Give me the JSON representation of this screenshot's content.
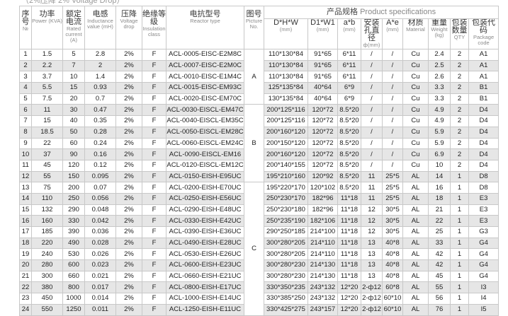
{
  "caption": "（2%压降  2% Voltage Drop）",
  "spec_group": {
    "zh": "产品规格",
    "en": "Product specifications"
  },
  "columns": [
    {
      "zh": "序号",
      "en": "№"
    },
    {
      "zh": "功率",
      "en": "Power (KVA)"
    },
    {
      "zh": "额定电流",
      "en": "Rated current (A)"
    },
    {
      "zh": "电感",
      "en": "Inductance value (mH)"
    },
    {
      "zh": "压降",
      "en": "Voltage drop"
    },
    {
      "zh": "绝缘等级",
      "en": "Insulation class"
    },
    {
      "zh": "电抗型号",
      "en": "Reactor type"
    },
    {
      "zh": "图号",
      "en": "Picture No."
    },
    {
      "zh": "D*H*W",
      "en": "(mm)"
    },
    {
      "zh": "D1*W1",
      "en": "(mm)"
    },
    {
      "zh": "a*b",
      "en": "(mm)"
    },
    {
      "zh": "安装孔直径",
      "en": "ф(mm)"
    },
    {
      "zh": "A*e",
      "en": "(mm)"
    },
    {
      "zh": "材质",
      "en": "Material"
    },
    {
      "zh": "重量",
      "en": "Weight (kg)"
    },
    {
      "zh": "包装数量",
      "en": "QTY"
    },
    {
      "zh": "包装代码",
      "en": "Package code"
    }
  ],
  "pictures": [
    {
      "label": "A",
      "rows": 5
    },
    {
      "label": "B",
      "rows": 7
    },
    {
      "label": "C",
      "rows": 12
    }
  ],
  "rows": [
    [
      "1",
      "1.5",
      "5",
      "2.8",
      "2%",
      "F",
      "ACL-0005-EISC-E2M8C",
      "110*130*84",
      "91*65",
      "6*11",
      "/",
      "/",
      "Cu",
      "2.4",
      "2",
      "A1"
    ],
    [
      "2",
      "2.2",
      "7",
      "2",
      "2%",
      "F",
      "ACL-0007-EISC-E2M0C",
      "110*130*84",
      "91*65",
      "6*11",
      "/",
      "/",
      "Cu",
      "2.5",
      "2",
      "A1"
    ],
    [
      "3",
      "3.7",
      "10",
      "1.4",
      "2%",
      "F",
      "ACL-0010-EISC-E1M4C",
      "110*130*84",
      "91*65",
      "6*11",
      "/",
      "/",
      "Cu",
      "2.6",
      "2",
      "A1"
    ],
    [
      "4",
      "5.5",
      "15",
      "0.93",
      "2%",
      "F",
      "ACL-0015-EISC-EM93C",
      "125*135*84",
      "40*64",
      "6*9",
      "/",
      "/",
      "Cu",
      "3.3",
      "2",
      "B1"
    ],
    [
      "5",
      "7.5",
      "20",
      "0.7",
      "2%",
      "F",
      "ACL-0020-EISC-EM70C",
      "130*135*84",
      "40*64",
      "6*9",
      "/",
      "/",
      "Cu",
      "3.3",
      "2",
      "B1"
    ],
    [
      "6",
      "11",
      "30",
      "0.47",
      "2%",
      "F",
      "ACL-0030-EISCL-EM47C",
      "200*125*116",
      "120*72",
      "8.5*20",
      "/",
      "/",
      "Cu",
      "4.9",
      "2",
      "D4"
    ],
    [
      "7",
      "15",
      "40",
      "0.35",
      "2%",
      "F",
      "ACL-0040-EISCL-EM35C",
      "200*125*116",
      "120*72",
      "8.5*20",
      "/",
      "/",
      "Cu",
      "4.9",
      "2",
      "D4"
    ],
    [
      "8",
      "18.5",
      "50",
      "0.28",
      "2%",
      "F",
      "ACL-0050-EISCL-EM28C",
      "200*160*120",
      "120*72",
      "8.5*20",
      "/",
      "/",
      "Cu",
      "5.9",
      "2",
      "D4"
    ],
    [
      "9",
      "22",
      "60",
      "0.24",
      "2%",
      "F",
      "ACL-0060-EISCL-EM24C",
      "200*150*120",
      "120*72",
      "8.5*20",
      "/",
      "/",
      "Cu",
      "5.9",
      "2",
      "D4"
    ],
    [
      "10",
      "37",
      "90",
      "0.16",
      "2%",
      "F",
      "ACL-0090-EISCL-EM16",
      "200*160*120",
      "120*72",
      "8.5*20",
      "/",
      "/",
      "Cu",
      "6.9",
      "2",
      "D4"
    ],
    [
      "11",
      "45",
      "120",
      "0.12",
      "2%",
      "F",
      "ACL-0120-EISCL-EM12C",
      "200*140*155",
      "120*72",
      "8.5*20",
      "/",
      "/",
      "Cu",
      "10",
      "2",
      "D4"
    ],
    [
      "12",
      "55",
      "150",
      "0.095",
      "2%",
      "F",
      "ACL-0150-EISH-E95UC",
      "195*210*160",
      "120*92",
      "8.5*20",
      "11",
      "25*5",
      "AL",
      "14",
      "1",
      "D8"
    ],
    [
      "13",
      "75",
      "200",
      "0.07",
      "2%",
      "F",
      "ACL-0200-EISH-E70UC",
      "195*220*170",
      "120*102",
      "8.5*20",
      "11",
      "25*5",
      "AL",
      "16",
      "1",
      "D8"
    ],
    [
      "14",
      "110",
      "250",
      "0.056",
      "2%",
      "F",
      "ACL-0250-EISH-E56UC",
      "250*230*170",
      "182*96",
      "11*18",
      "11",
      "25*5",
      "AL",
      "18",
      "1",
      "E3"
    ],
    [
      "15",
      "132",
      "290",
      "0.048",
      "2%",
      "F",
      "ACL-0290-EISH-E48UC",
      "250*230*180",
      "182*96",
      "11*18",
      "12",
      "30*5",
      "AL",
      "21",
      "1",
      "E3"
    ],
    [
      "16",
      "160",
      "330",
      "0.042",
      "2%",
      "F",
      "ACL-0330-EISH-E42UC",
      "250*235*190",
      "182*106",
      "11*18",
      "12",
      "30*5",
      "AL",
      "22",
      "1",
      "E3"
    ],
    [
      "17",
      "185",
      "390",
      "0.036",
      "2%",
      "F",
      "ACL-0390-EISH-E36UC",
      "290*250*185",
      "214*100",
      "11*18",
      "12",
      "30*5",
      "AL",
      "25",
      "1",
      "G3"
    ],
    [
      "18",
      "220",
      "490",
      "0.028",
      "2%",
      "F",
      "ACL-0490-EISH-E28UC",
      "300*280*205",
      "214*110",
      "11*18",
      "13",
      "40*8",
      "AL",
      "33",
      "1",
      "G4"
    ],
    [
      "19",
      "240",
      "530",
      "0.026",
      "2%",
      "F",
      "ACL-0530-EISH-E26UC",
      "300*280*205",
      "214*110",
      "11*18",
      "13",
      "40*8",
      "AL",
      "42",
      "1",
      "G4"
    ],
    [
      "20",
      "280",
      "600",
      "0.023",
      "2%",
      "F",
      "ACL-0600-EISH-E23UC",
      "300*280*230",
      "214*130",
      "11*18",
      "13",
      "40*8",
      "AL",
      "42",
      "1",
      "G4"
    ],
    [
      "21",
      "300",
      "660",
      "0.021",
      "2%",
      "F",
      "ACL-0660-EISH-E21UC",
      "300*280*230",
      "214*130",
      "11*18",
      "13",
      "40*8",
      "AL",
      "45",
      "1",
      "G4"
    ],
    [
      "22",
      "380",
      "800",
      "0.017",
      "2%",
      "F",
      "ACL-0800-EISH-E17UC",
      "330*350*235",
      "243*132",
      "12*20",
      "2-ф12",
      "60*8",
      "AL",
      "55",
      "1",
      "I3"
    ],
    [
      "23",
      "450",
      "1000",
      "0.014",
      "2%",
      "F",
      "ACL-1000-EISH-E14UC",
      "330*385*250",
      "243*132",
      "12*20",
      "2-ф12",
      "60*10",
      "AL",
      "56",
      "1",
      "I4"
    ],
    [
      "24",
      "550",
      "1250",
      "0.011",
      "2%",
      "F",
      "ACL-1250-EISH-E11UC",
      "330*425*275",
      "243*157",
      "12*20",
      "2-ф12",
      "60*10",
      "AL",
      "76",
      "1",
      "I5"
    ]
  ]
}
